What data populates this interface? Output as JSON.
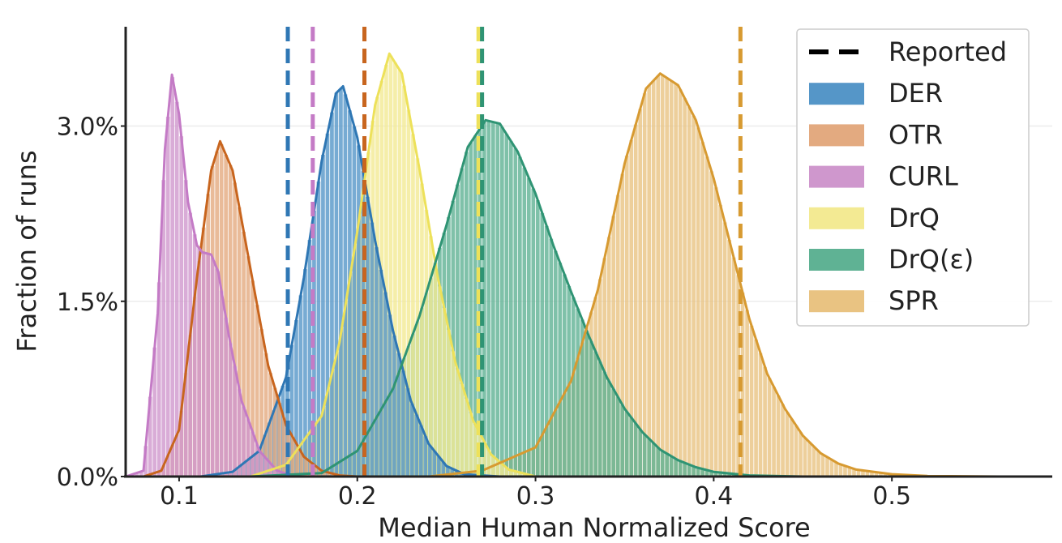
{
  "chart_data": {
    "type": "histogram",
    "xlabel": "Median Human Normalized Score",
    "ylabel": "Fraction of runs",
    "xlim": [
      0.07,
      0.59
    ],
    "ylim": [
      0,
      0.0385
    ],
    "x_ticks": [
      0.1,
      0.2,
      0.3,
      0.4,
      0.5
    ],
    "x_tick_labels": [
      "0.1",
      "0.2",
      "0.3",
      "0.4",
      "0.5"
    ],
    "y_ticks": [
      0.0,
      0.015,
      0.03
    ],
    "y_tick_labels": [
      "0.0%",
      "1.5%",
      "3.0%"
    ],
    "grid": "horizontal, light",
    "legend_position": "top-right",
    "legend": {
      "reported_label": "Reported",
      "series_labels": [
        "DER",
        "OTR",
        "CURL",
        "DrQ",
        "DrQ(ε)",
        "SPR"
      ]
    },
    "series": [
      {
        "name": "DER",
        "color": "#2f77b4",
        "fill": "#5596c8",
        "curve": [
          [
            0.112,
            0
          ],
          [
            0.13,
            0.0004
          ],
          [
            0.145,
            0.0022
          ],
          [
            0.16,
            0.0085
          ],
          [
            0.17,
            0.017
          ],
          [
            0.18,
            0.027
          ],
          [
            0.188,
            0.0328
          ],
          [
            0.192,
            0.0334
          ],
          [
            0.2,
            0.029
          ],
          [
            0.21,
            0.0202
          ],
          [
            0.22,
            0.0125
          ],
          [
            0.23,
            0.0065
          ],
          [
            0.24,
            0.0028
          ],
          [
            0.25,
            0.0009
          ],
          [
            0.26,
            0.0002
          ],
          [
            0.28,
            0
          ]
        ],
        "reported": 0.161
      },
      {
        "name": "OTR",
        "color": "#c8651e",
        "fill": "#e3aa80",
        "curve": [
          [
            0.08,
            0
          ],
          [
            0.09,
            0.0005
          ],
          [
            0.1,
            0.004
          ],
          [
            0.11,
            0.017
          ],
          [
            0.118,
            0.0262
          ],
          [
            0.123,
            0.0287
          ],
          [
            0.13,
            0.0262
          ],
          [
            0.14,
            0.0178
          ],
          [
            0.15,
            0.0095
          ],
          [
            0.16,
            0.0044
          ],
          [
            0.17,
            0.0017
          ],
          [
            0.18,
            0.0005
          ],
          [
            0.19,
            0.0001
          ],
          [
            0.2,
            0
          ]
        ],
        "reported": 0.204
      },
      {
        "name": "CURL",
        "color": "#c47bc6",
        "fill": "#cf97cd",
        "curve": [
          [
            0.07,
            0
          ],
          [
            0.08,
            0.0005
          ],
          [
            0.088,
            0.014
          ],
          [
            0.092,
            0.028
          ],
          [
            0.096,
            0.0344
          ],
          [
            0.1,
            0.031
          ],
          [
            0.105,
            0.0235
          ],
          [
            0.11,
            0.0198
          ],
          [
            0.113,
            0.0192
          ],
          [
            0.118,
            0.019
          ],
          [
            0.122,
            0.0175
          ],
          [
            0.128,
            0.012
          ],
          [
            0.135,
            0.0065
          ],
          [
            0.145,
            0.0022
          ],
          [
            0.155,
            0.0005
          ],
          [
            0.165,
            0
          ]
        ],
        "reported": 0.175
      },
      {
        "name": "DrQ",
        "color": "#ede15a",
        "fill": "#f3ea93",
        "curve": [
          [
            0.14,
            0
          ],
          [
            0.16,
            0.001
          ],
          [
            0.18,
            0.0052
          ],
          [
            0.19,
            0.0115
          ],
          [
            0.2,
            0.021
          ],
          [
            0.21,
            0.0318
          ],
          [
            0.218,
            0.0362
          ],
          [
            0.225,
            0.0345
          ],
          [
            0.235,
            0.0262
          ],
          [
            0.245,
            0.0172
          ],
          [
            0.255,
            0.0098
          ],
          [
            0.265,
            0.0048
          ],
          [
            0.275,
            0.0019
          ],
          [
            0.285,
            0.0006
          ],
          [
            0.3,
            0
          ]
        ],
        "reported": 0.268
      },
      {
        "name": "DrQ(ε)",
        "color": "#2f9474",
        "fill": "#5fb294",
        "curve": [
          [
            0.14,
            0
          ],
          [
            0.18,
            0.0003
          ],
          [
            0.2,
            0.0022
          ],
          [
            0.22,
            0.0075
          ],
          [
            0.235,
            0.0138
          ],
          [
            0.25,
            0.0215
          ],
          [
            0.262,
            0.0282
          ],
          [
            0.272,
            0.0305
          ],
          [
            0.28,
            0.0302
          ],
          [
            0.29,
            0.0278
          ],
          [
            0.3,
            0.0242
          ],
          [
            0.31,
            0.0198
          ],
          [
            0.32,
            0.0158
          ],
          [
            0.33,
            0.012
          ],
          [
            0.34,
            0.0085
          ],
          [
            0.35,
            0.0058
          ],
          [
            0.36,
            0.0038
          ],
          [
            0.37,
            0.0023
          ],
          [
            0.38,
            0.0014
          ],
          [
            0.39,
            0.0008
          ],
          [
            0.4,
            0.0004
          ],
          [
            0.42,
            0.0001
          ],
          [
            0.45,
            0
          ]
        ],
        "reported": 0.27
      },
      {
        "name": "SPR",
        "color": "#d79a31",
        "fill": "#e9c382",
        "curve": [
          [
            0.24,
            0
          ],
          [
            0.27,
            0.0005
          ],
          [
            0.3,
            0.0025
          ],
          [
            0.32,
            0.0082
          ],
          [
            0.335,
            0.016
          ],
          [
            0.35,
            0.0268
          ],
          [
            0.362,
            0.0332
          ],
          [
            0.37,
            0.0345
          ],
          [
            0.38,
            0.0335
          ],
          [
            0.39,
            0.0305
          ],
          [
            0.4,
            0.0255
          ],
          [
            0.41,
            0.0195
          ],
          [
            0.42,
            0.0135
          ],
          [
            0.43,
            0.0088
          ],
          [
            0.44,
            0.0058
          ],
          [
            0.45,
            0.0035
          ],
          [
            0.46,
            0.002
          ],
          [
            0.47,
            0.0011
          ],
          [
            0.48,
            0.0006
          ],
          [
            0.5,
            0.0002
          ],
          [
            0.52,
            5e-05
          ],
          [
            0.56,
            0
          ]
        ],
        "reported": 0.415
      }
    ]
  }
}
